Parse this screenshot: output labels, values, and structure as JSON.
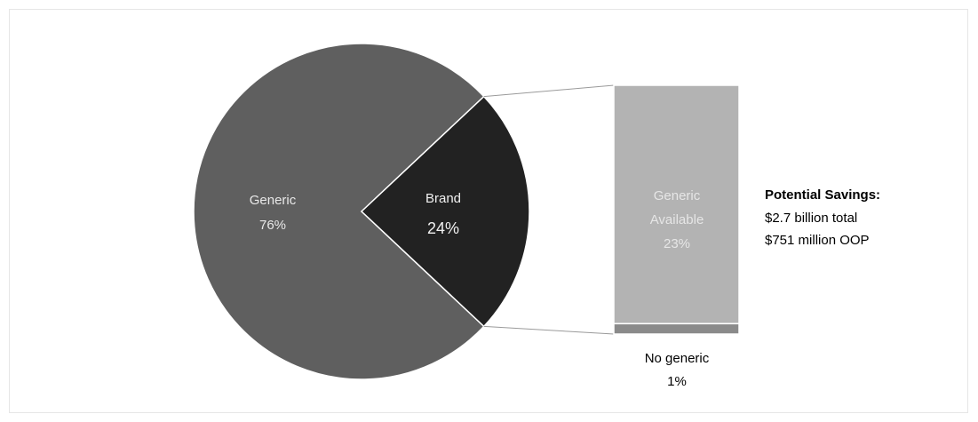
{
  "chart_data": {
    "type": "pie",
    "slices": [
      {
        "label": "Generic",
        "value_label": "76%",
        "value": 76,
        "color": "#5f5f5f"
      },
      {
        "label": "Brand",
        "value_label": "24%",
        "value": 24,
        "color": "#222222"
      }
    ],
    "breakdown": {
      "of": "Brand",
      "type": "stacked-bar",
      "segments": [
        {
          "label": "Generic Available",
          "label_lines": [
            "Generic",
            "Available"
          ],
          "value_label": "23%",
          "value": 23,
          "color": "#b3b3b3",
          "label_color": "#e6e6e6"
        },
        {
          "label": "No generic",
          "value_label": "1%",
          "value": 1,
          "color": "#8a8a8a",
          "label_color": "#000000"
        }
      ]
    },
    "annotation": {
      "title": "Potential Savings:",
      "lines": [
        "$2.7 billion total",
        "$751 million OOP"
      ]
    }
  }
}
